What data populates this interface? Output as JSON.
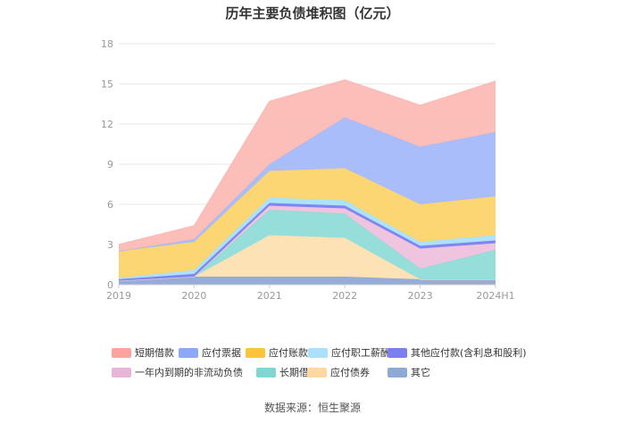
{
  "title": "历年主要负债堆积图（亿元）",
  "source": "数据来源：恒生聚源",
  "chart_data": {
    "type": "area",
    "stacked": true,
    "title": "历年主要负债堆积图（亿元）",
    "xlabel": "",
    "ylabel": "",
    "categories": [
      "2019",
      "2020",
      "2021",
      "2022",
      "2023",
      "2024H1"
    ],
    "ylim": [
      0,
      18
    ],
    "yticks": [
      0,
      3,
      6,
      9,
      12,
      15,
      18
    ],
    "grid": true,
    "legend_position": "bottom",
    "series": [
      {
        "name": "其它",
        "color": "#8fa9d6",
        "values": [
          0.3,
          0.6,
          0.6,
          0.6,
          0.4,
          0.4
        ]
      },
      {
        "name": "应付债券",
        "color": "#fde0b2",
        "values": [
          0.0,
          0.0,
          3.1,
          2.9,
          0.0,
          0.0
        ]
      },
      {
        "name": "长期借款",
        "color": "#8fdcd8",
        "values": [
          0.0,
          0.0,
          1.9,
          1.8,
          0.8,
          2.2
        ]
      },
      {
        "name": "一年内到期的非流动负债",
        "color": "#eec1dd",
        "values": [
          0.0,
          0.0,
          0.3,
          0.4,
          1.5,
          0.5
        ]
      },
      {
        "name": "其他应付款(含利息和股利)",
        "color": "#7b7ff0",
        "values": [
          0.1,
          0.2,
          0.2,
          0.2,
          0.2,
          0.2
        ]
      },
      {
        "name": "应付职工薪酬",
        "color": "#a9e0fb",
        "values": [
          0.1,
          0.3,
          0.4,
          0.4,
          0.3,
          0.4
        ]
      },
      {
        "name": "应付账款",
        "color": "#fdd46d",
        "values": [
          2.0,
          2.1,
          2.0,
          2.4,
          2.8,
          2.9
        ]
      },
      {
        "name": "应付票据",
        "color": "#a5b9fb",
        "values": [
          0.0,
          0.2,
          0.5,
          3.8,
          4.3,
          4.8
        ]
      },
      {
        "name": "短期借款",
        "color": "#fbbab5",
        "values": [
          0.5,
          1.0,
          4.7,
          2.8,
          3.1,
          3.8
        ]
      }
    ]
  },
  "legend": [
    {
      "label": "短期借款",
      "color": "#fba39c"
    },
    {
      "label": "应付票据",
      "color": "#8ea8f8"
    },
    {
      "label": "应付账款",
      "color": "#fcc33b"
    },
    {
      "label": "应付职工薪酬",
      "color": "#a9e0fb"
    },
    {
      "label": "其他应付款(含利息和股利)",
      "color": "#7b7ff0"
    },
    {
      "label": "一年内到期的非流动负债",
      "color": "#e8b4d7"
    },
    {
      "label": "长期借款",
      "color": "#7fd6d2"
    },
    {
      "label": "应付债券",
      "color": "#fdd9a0"
    },
    {
      "label": "其它",
      "color": "#8fa9d6"
    }
  ]
}
